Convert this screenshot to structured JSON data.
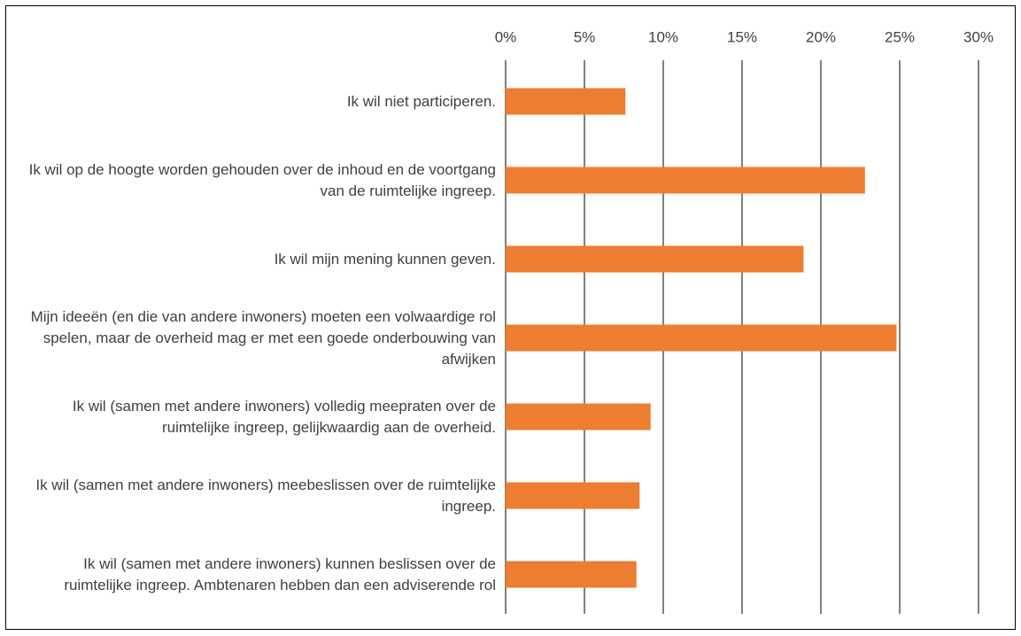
{
  "chart_data": {
    "type": "bar",
    "orientation": "horizontal",
    "categories": [
      "Ik wil niet participeren.",
      "Ik wil op de hoogte worden gehouden over de inhoud en de voortgang van de ruimtelijke ingreep.",
      "Ik wil mijn mening kunnen geven.",
      "Mijn ideeën (en die van andere inwoners) moeten een volwaardige rol spelen, maar de overheid mag er met een goede onderbouwing van afwijken",
      "Ik wil (samen met andere inwoners) volledig meepraten over de ruimtelijke ingreep, gelijkwaardig aan de overheid.",
      "Ik wil (samen met andere inwoners) meebeslissen over de ruimtelijke ingreep.",
      "Ik wil (samen met andere inwoners) kunnen beslissen over de ruimtelijke ingreep. Ambtenaren hebben dan een adviserende rol"
    ],
    "values": [
      7.6,
      22.8,
      18.9,
      24.8,
      9.2,
      8.5,
      8.3
    ],
    "color": "#ed7d31",
    "xlim": [
      0,
      30
    ],
    "xticks": [
      {
        "value": 0,
        "label": "0%"
      },
      {
        "value": 5,
        "label": "5%"
      },
      {
        "value": 10,
        "label": "10%"
      },
      {
        "value": 15,
        "label": "15%"
      },
      {
        "value": 20,
        "label": "20%"
      },
      {
        "value": 25,
        "label": "25%"
      },
      {
        "value": 30,
        "label": "30%"
      }
    ],
    "grid": true
  }
}
